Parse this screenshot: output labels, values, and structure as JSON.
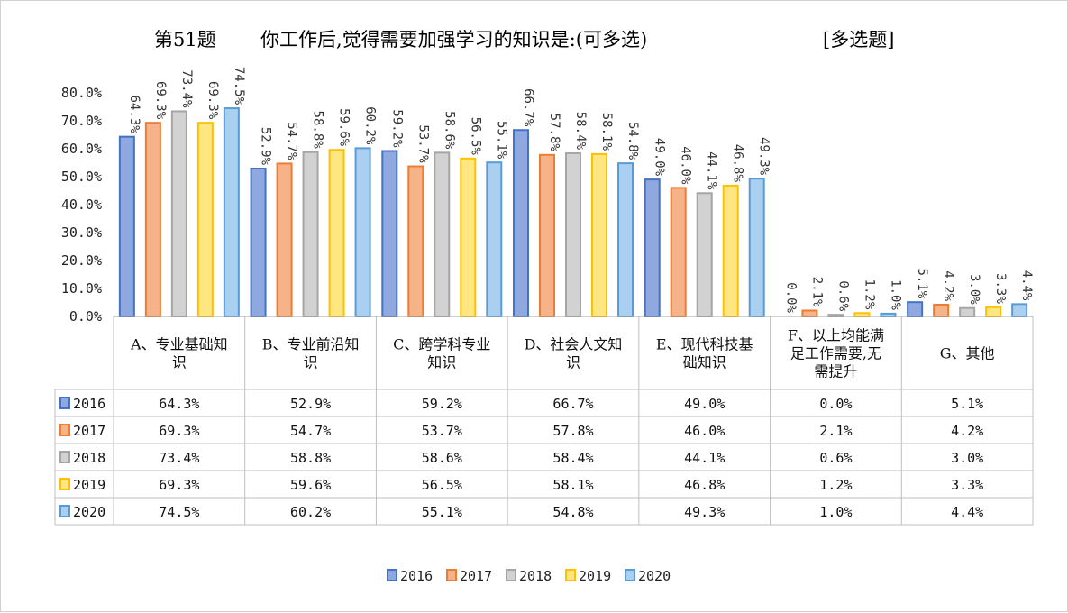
{
  "title": {
    "number": "第51题",
    "question": "你工作后,觉得需要加强学习的知识是:(可多选)",
    "type": "[多选题]"
  },
  "chart_data": {
    "type": "bar",
    "categories": [
      [
        "A、专业基础知",
        "识"
      ],
      [
        "B、专业前沿知",
        "识"
      ],
      [
        "C、跨学科专业",
        "知识"
      ],
      [
        "D、社会人文知",
        "识"
      ],
      [
        "E、现代科技基",
        "础知识"
      ],
      [
        "F、以上均能满",
        "足工作需要,无",
        "需提升"
      ],
      [
        "G、其他"
      ]
    ],
    "series": [
      {
        "name": "2016",
        "color": "#4472c4",
        "fill": "#8fa8e0",
        "values": [
          64.3,
          52.9,
          59.2,
          66.7,
          49.0,
          0.0,
          5.1
        ],
        "labels": [
          "64.3%",
          "52.9%",
          "59.2%",
          "66.7%",
          "49.0%",
          "0.0%",
          "5.1%"
        ]
      },
      {
        "name": "2017",
        "color": "#ed7d31",
        "fill": "#f6b38a",
        "values": [
          69.3,
          54.7,
          53.7,
          57.8,
          46.0,
          2.1,
          4.2
        ],
        "labels": [
          "69.3%",
          "54.7%",
          "53.7%",
          "57.8%",
          "46.0%",
          "2.1%",
          "4.2%"
        ]
      },
      {
        "name": "2018",
        "color": "#a5a5a5",
        "fill": "#d2d2d2",
        "values": [
          73.4,
          58.8,
          58.6,
          58.4,
          44.1,
          0.6,
          3.0
        ],
        "labels": [
          "73.4%",
          "58.8%",
          "58.6%",
          "58.4%",
          "44.1%",
          "0.6%",
          "3.0%"
        ]
      },
      {
        "name": "2019",
        "color": "#ffc000",
        "fill": "#ffe680",
        "values": [
          69.3,
          59.6,
          56.5,
          58.1,
          46.8,
          1.2,
          3.3
        ],
        "labels": [
          "69.3%",
          "59.6%",
          "56.5%",
          "58.1%",
          "46.8%",
          "1.2%",
          "3.3%"
        ]
      },
      {
        "name": "2020",
        "color": "#5b9bd5",
        "fill": "#a9d0f0",
        "values": [
          74.5,
          60.2,
          55.1,
          54.8,
          49.3,
          1.0,
          4.4
        ],
        "labels": [
          "74.5%",
          "60.2%",
          "55.1%",
          "54.8%",
          "49.3%",
          "1.0%",
          "4.4%"
        ]
      }
    ],
    "ylim": [
      0,
      80
    ],
    "yticks": [
      "0.0%",
      "10.0%",
      "20.0%",
      "30.0%",
      "40.0%",
      "50.0%",
      "60.0%",
      "70.0%",
      "80.0%"
    ],
    "legend": "bottom",
    "grid": false,
    "data_table": true
  }
}
